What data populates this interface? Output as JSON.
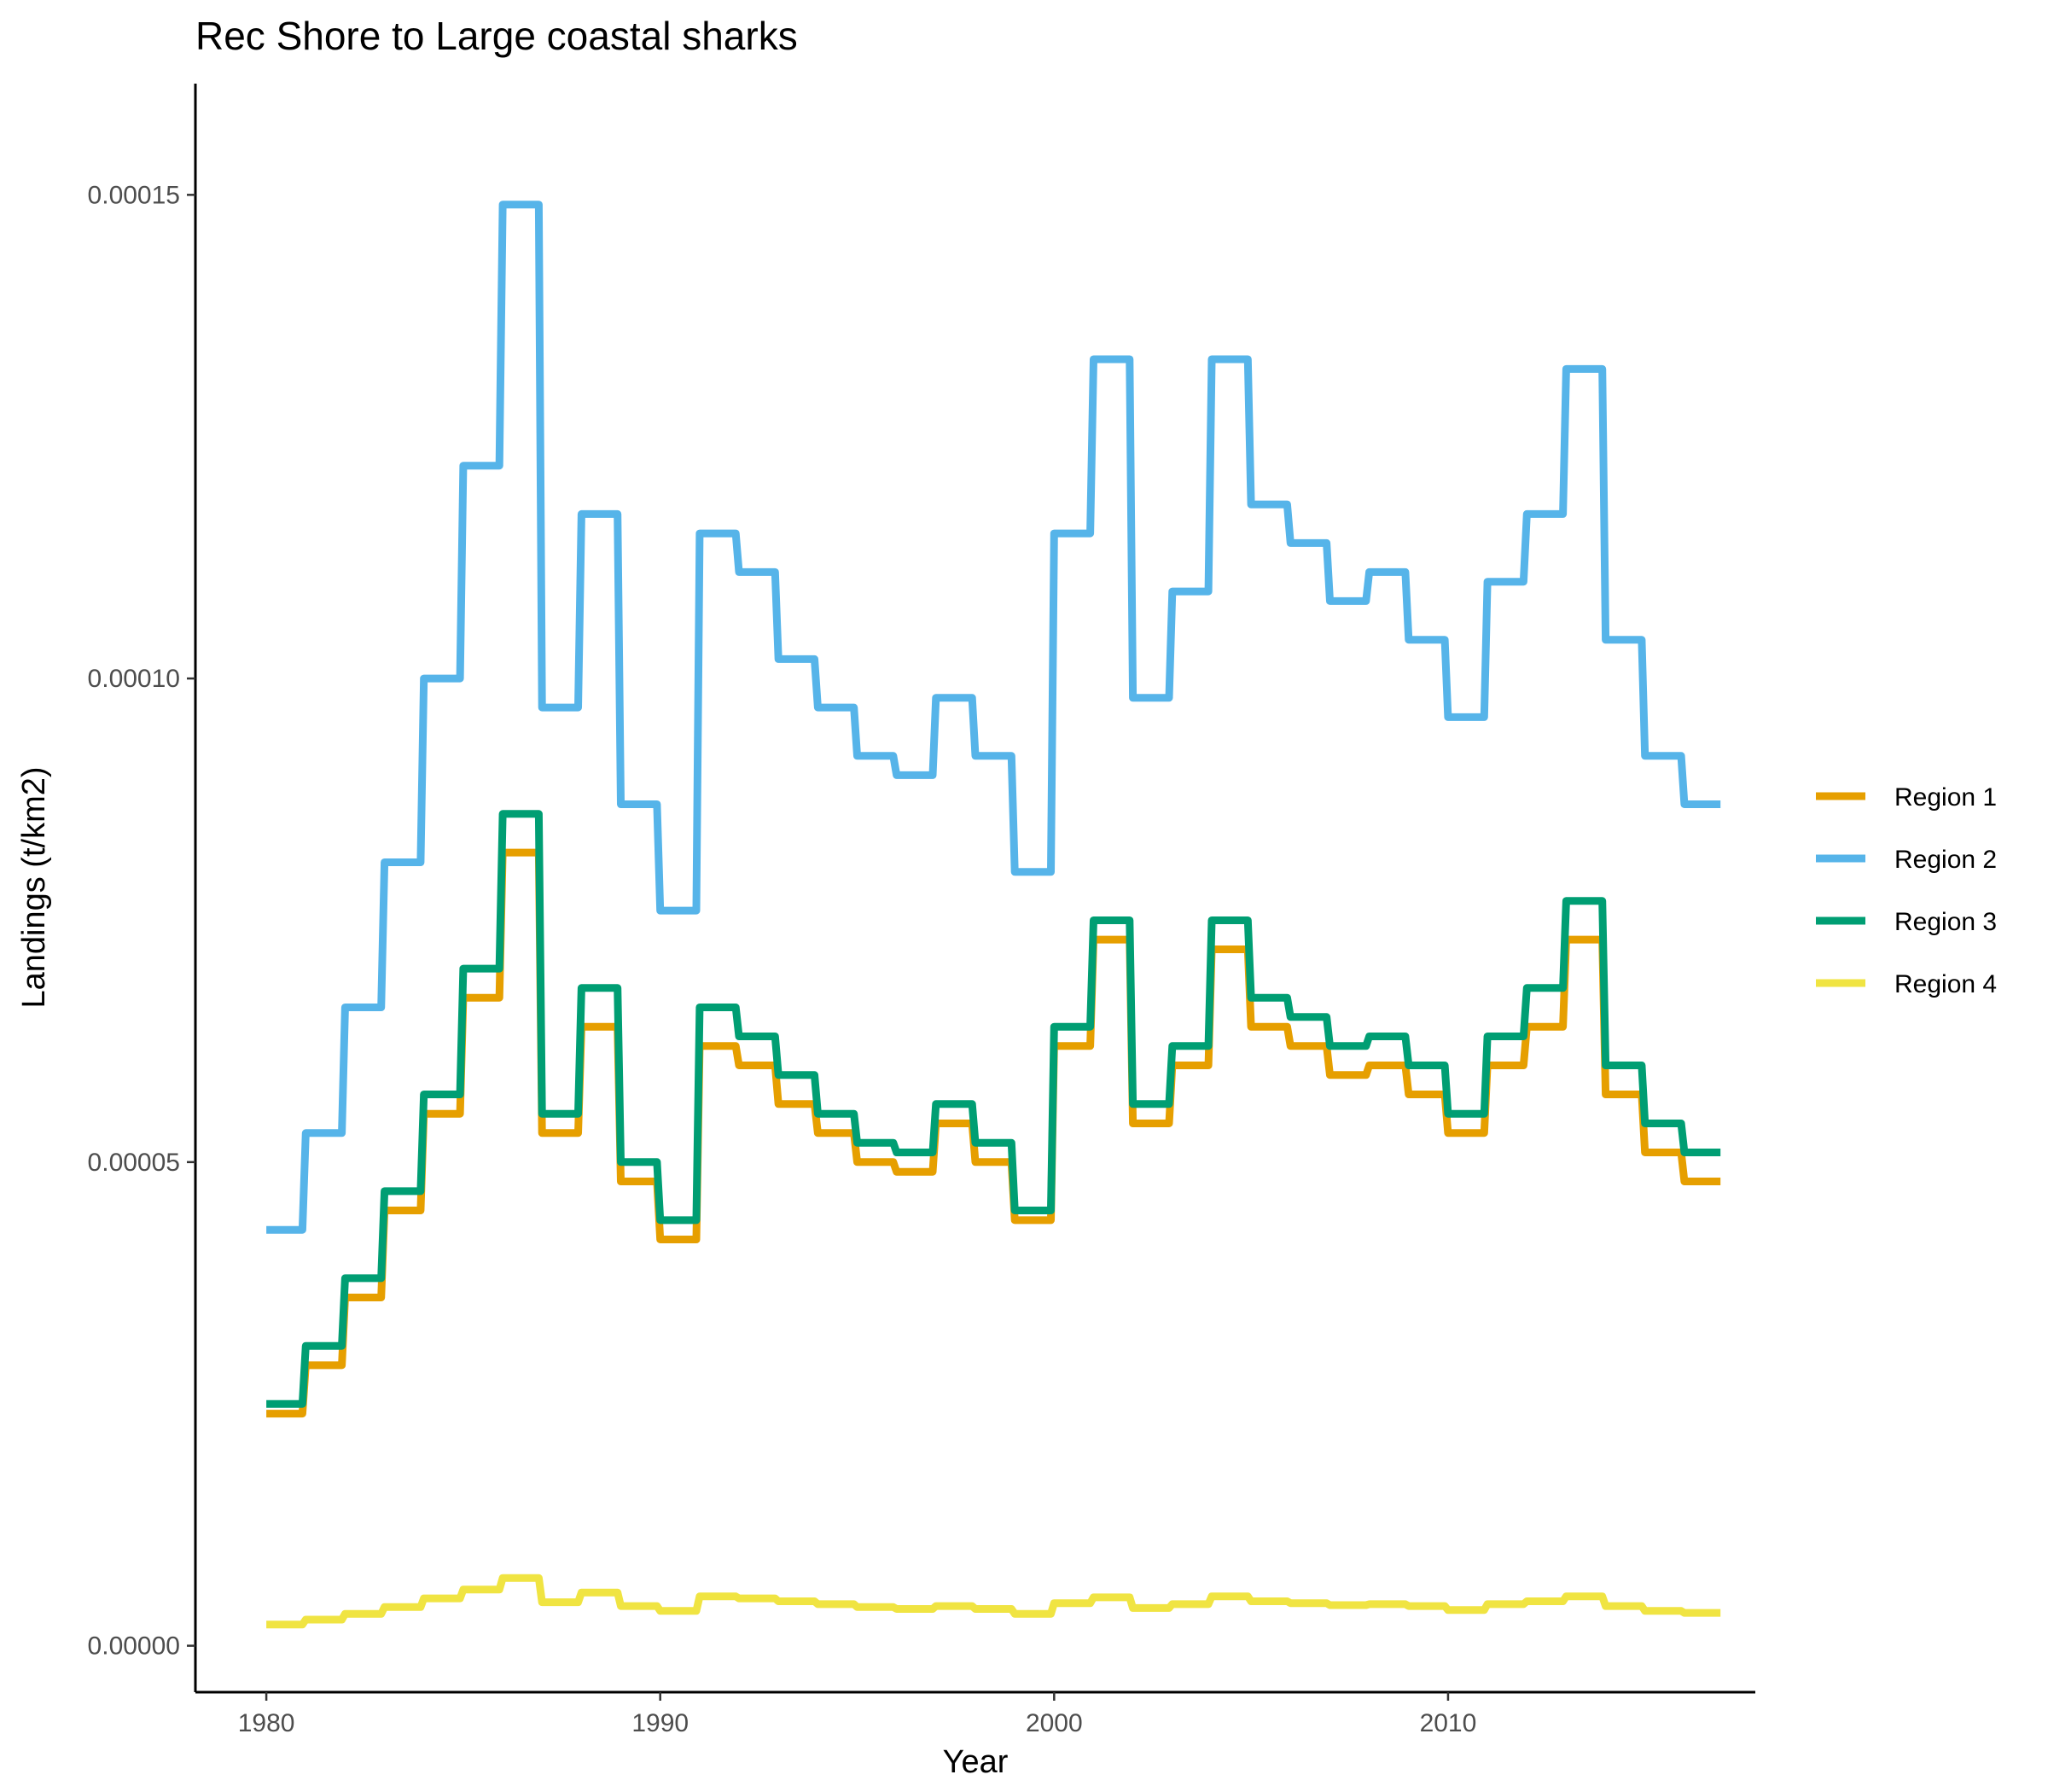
{
  "chart_data": {
    "type": "line",
    "title": "Rec Shore to Large coastal sharks",
    "xlabel": "Year",
    "ylabel": "Landings (t/km2)",
    "xlim": [
      1978.2,
      2017.8
    ],
    "ylim": [
      -4.8e-06,
      0.0001615
    ],
    "x_ticks": [
      1980,
      1990,
      2000,
      2010
    ],
    "x_tick_labels": [
      "1980",
      "1990",
      "2000",
      "2010"
    ],
    "y_ticks": [
      0,
      5e-05,
      0.0001,
      0.00015
    ],
    "y_tick_labels": [
      "0.00000",
      "0.00005",
      "0.00010",
      "0.00015"
    ],
    "grid": false,
    "legend_position": "right",
    "note": "Annual values drawn as yearly steps (each year's value held from Jan to Dec).",
    "years": [
      1980,
      1981,
      1982,
      1983,
      1984,
      1985,
      1986,
      1987,
      1988,
      1989,
      1990,
      1991,
      1992,
      1993,
      1994,
      1995,
      1996,
      1997,
      1998,
      1999,
      2000,
      2001,
      2002,
      2003,
      2004,
      2005,
      2006,
      2007,
      2008,
      2009,
      2010,
      2011,
      2012,
      2013,
      2014,
      2015,
      2016
    ],
    "series": [
      {
        "name": "Region 1",
        "color": "#E69F00",
        "values": [
          2.4e-05,
          2.9e-05,
          3.6e-05,
          4.5e-05,
          5.5e-05,
          6.7e-05,
          8.2e-05,
          5.3e-05,
          6.4e-05,
          4.8e-05,
          4.2e-05,
          6.2e-05,
          6e-05,
          5.6e-05,
          5.3e-05,
          5e-05,
          4.9e-05,
          5.4e-05,
          5e-05,
          4.4e-05,
          6.2e-05,
          7.3e-05,
          5.4e-05,
          6e-05,
          7.2e-05,
          6.4e-05,
          6.2e-05,
          5.9e-05,
          6e-05,
          5.7e-05,
          5.3e-05,
          6e-05,
          6.4e-05,
          7.3e-05,
          5.7e-05,
          5.1e-05,
          4.8e-05
        ]
      },
      {
        "name": "Region 2",
        "color": "#56B4E9",
        "values": [
          4.3e-05,
          5.3e-05,
          6.6e-05,
          8.1e-05,
          0.0001,
          0.000122,
          0.000149,
          9.7e-05,
          0.000117,
          8.7e-05,
          7.6e-05,
          0.000115,
          0.000111,
          0.000102,
          9.7e-05,
          9.2e-05,
          9e-05,
          9.8e-05,
          9.2e-05,
          8e-05,
          0.000115,
          0.000133,
          9.8e-05,
          0.000109,
          0.000133,
          0.000118,
          0.000114,
          0.000108,
          0.000111,
          0.000104,
          9.6e-05,
          0.00011,
          0.000117,
          0.000132,
          0.000104,
          9.2e-05,
          8.7e-05
        ]
      },
      {
        "name": "Region 3",
        "color": "#009E73",
        "values": [
          2.5e-05,
          3.1e-05,
          3.8e-05,
          4.7e-05,
          5.7e-05,
          7e-05,
          8.6e-05,
          5.5e-05,
          6.8e-05,
          5e-05,
          4.4e-05,
          6.6e-05,
          6.3e-05,
          5.9e-05,
          5.5e-05,
          5.2e-05,
          5.1e-05,
          5.6e-05,
          5.2e-05,
          4.5e-05,
          6.4e-05,
          7.5e-05,
          5.6e-05,
          6.2e-05,
          7.5e-05,
          6.7e-05,
          6.5e-05,
          6.2e-05,
          6.3e-05,
          6e-05,
          5.5e-05,
          6.3e-05,
          6.8e-05,
          7.7e-05,
          6e-05,
          5.4e-05,
          5.1e-05
        ]
      },
      {
        "name": "Region 4",
        "color": "#F0E442",
        "values": [
          2.2e-06,
          2.7e-06,
          3.3e-06,
          4e-06,
          4.9e-06,
          5.8e-06,
          7e-06,
          4.5e-06,
          5.5e-06,
          4.1e-06,
          3.6e-06,
          5.1e-06,
          4.9e-06,
          4.6e-06,
          4.3e-06,
          4e-06,
          3.8e-06,
          4.1e-06,
          3.8e-06,
          3.3e-06,
          4.4e-06,
          5e-06,
          3.9e-06,
          4.3e-06,
          5.1e-06,
          4.6e-06,
          4.4e-06,
          4.2e-06,
          4.3e-06,
          4.1e-06,
          3.7e-06,
          4.3e-06,
          4.6e-06,
          5.1e-06,
          4.1e-06,
          3.6e-06,
          3.4e-06
        ]
      }
    ]
  }
}
